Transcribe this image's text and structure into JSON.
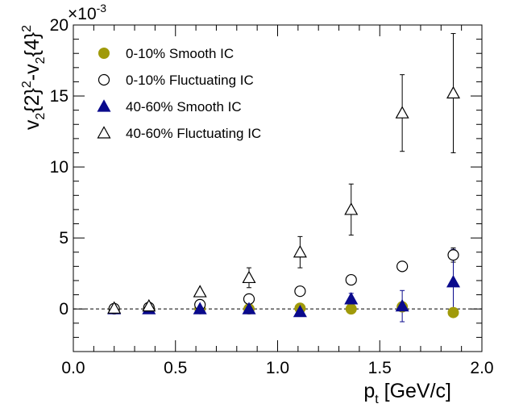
{
  "chart_data": {
    "type": "scatter",
    "xlabel": {
      "main": "p",
      "sub": "t",
      "rest": " [GeV/c]"
    },
    "ylabel": {
      "p1": "v",
      "s1": "2",
      "p2": "{2}",
      "e1": "2",
      "p3": "-v",
      "s2": "2",
      "p4": "{4}",
      "e2": "2"
    },
    "y_multiplier": {
      "base": "×10",
      "exp": "-3"
    },
    "xlim": [
      0.0,
      2.0
    ],
    "ylim": [
      -3.0,
      20.0
    ],
    "x_ticks": [
      "0.0",
      "0.5",
      "1.0",
      "1.5",
      "2.0"
    ],
    "y_ticks": [
      "0",
      "5",
      "10",
      "15",
      "20"
    ],
    "zero_line": true,
    "legend_position": "top-left",
    "series": [
      {
        "name": "0-10% Smooth IC",
        "marker": "circle-filled",
        "color": "#a09a0a",
        "points": [
          {
            "x": 0.2,
            "y": 0.0
          },
          {
            "x": 0.37,
            "y": 0.05
          },
          {
            "x": 0.62,
            "y": 0.02
          },
          {
            "x": 0.86,
            "y": 0.0
          },
          {
            "x": 1.11,
            "y": 0.05
          },
          {
            "x": 1.36,
            "y": 0.0
          },
          {
            "x": 1.61,
            "y": 0.15
          },
          {
            "x": 1.86,
            "y": -0.25
          }
        ]
      },
      {
        "name": "0-10% Fluctuating IC",
        "marker": "circle-open",
        "color": "#000000",
        "points": [
          {
            "x": 0.2,
            "y": 0.02
          },
          {
            "x": 0.37,
            "y": 0.1
          },
          {
            "x": 0.62,
            "y": 0.3
          },
          {
            "x": 0.86,
            "y": 0.7
          },
          {
            "x": 1.11,
            "y": 1.25
          },
          {
            "x": 1.36,
            "y": 2.05
          },
          {
            "x": 1.61,
            "y": 3.0,
            "err": 0.3
          },
          {
            "x": 1.86,
            "y": 3.8,
            "err": 0.5
          }
        ]
      },
      {
        "name": "40-60% Smooth IC",
        "marker": "triangle-filled",
        "color": "#0a0a8c",
        "points": [
          {
            "x": 0.2,
            "y": 0.0
          },
          {
            "x": 0.37,
            "y": 0.0
          },
          {
            "x": 0.62,
            "y": 0.0
          },
          {
            "x": 0.86,
            "y": 0.0
          },
          {
            "x": 1.11,
            "y": -0.2
          },
          {
            "x": 1.36,
            "y": 0.7,
            "err": 0.4
          },
          {
            "x": 1.61,
            "y": 0.2,
            "err": 1.1
          },
          {
            "x": 1.86,
            "y": 1.9,
            "err": 2.3
          }
        ]
      },
      {
        "name": "40-60% Fluctuating IC",
        "marker": "triangle-open",
        "color": "#000000",
        "points": [
          {
            "x": 0.2,
            "y": 0.05
          },
          {
            "x": 0.37,
            "y": 0.2
          },
          {
            "x": 0.62,
            "y": 1.2
          },
          {
            "x": 0.86,
            "y": 2.2,
            "err": 0.7
          },
          {
            "x": 1.11,
            "y": 4.0,
            "err": 1.1
          },
          {
            "x": 1.36,
            "y": 7.0,
            "err": 1.8
          },
          {
            "x": 1.61,
            "y": 13.8,
            "err": 2.7
          },
          {
            "x": 1.86,
            "y": 15.2,
            "err": 4.2
          }
        ]
      }
    ]
  }
}
